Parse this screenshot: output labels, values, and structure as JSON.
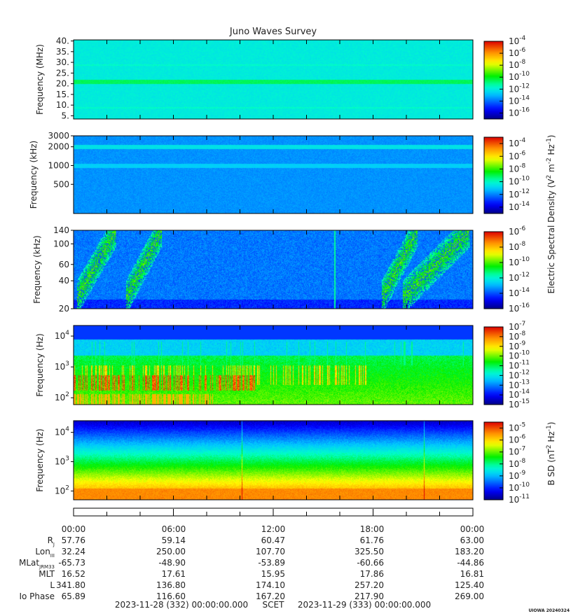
{
  "chart_data": {
    "type": "heatmap",
    "title": "Juno Waves Survey",
    "panels": [
      {
        "ylabel": "Frequency (MHz)",
        "yscale": "linear",
        "ylim": [
          3.5,
          40.5
        ],
        "yticks": [
          {
            "v": 5,
            "t": "5."
          },
          {
            "v": 10,
            "t": "10."
          },
          {
            "v": 15,
            "t": "15."
          },
          {
            "v": 20,
            "t": "20."
          },
          {
            "v": 25,
            "t": "25."
          },
          {
            "v": 30,
            "t": "30."
          },
          {
            "v": 35,
            "t": "35."
          },
          {
            "v": 40,
            "t": "40."
          }
        ],
        "background_level": -12,
        "bands": [
          {
            "f": 21,
            "level": -10.6
          }
        ],
        "colorbar": {
          "min": -17,
          "max": -4,
          "ticks": [
            -4,
            -6,
            -8,
            -10,
            -12,
            -14,
            -16
          ]
        }
      },
      {
        "ylabel": "Frequency (kHz)",
        "yscale": "log",
        "ylim": [
          170,
          3000
        ],
        "yticks": [
          {
            "v": 500,
            "t": "500"
          },
          {
            "v": 1000,
            "t": "1000"
          },
          {
            "v": 2000,
            "t": "2000"
          },
          {
            "v": 3000,
            "t": "3000"
          }
        ],
        "background_level": -11.8,
        "bands": [
          {
            "f": 2000,
            "level": -10.6
          },
          {
            "f": 1000,
            "level": -11.0
          }
        ],
        "colorbar": {
          "min": -15,
          "max": -3,
          "ticks": [
            -4,
            -6,
            -8,
            -10,
            -12,
            -14
          ]
        }
      },
      {
        "ylabel": "Frequency (kHz)",
        "yscale": "log",
        "ylim": [
          20,
          140
        ],
        "yticks": [
          {
            "v": 20,
            "t": "20"
          },
          {
            "v": 40,
            "t": "40"
          },
          {
            "v": 60,
            "t": "60"
          },
          {
            "v": 100,
            "t": "100"
          },
          {
            "v": 140,
            "t": "140"
          }
        ],
        "background_level": -13.6,
        "emissions": "auroral_kilometric_arcs",
        "colorbar": {
          "min": -16,
          "max": -6,
          "ticks": [
            -6,
            -8,
            -10,
            -12,
            -14,
            -16
          ]
        }
      },
      {
        "ylabel": "Frequency (Hz)",
        "yscale": "log",
        "ylim": [
          60,
          22000
        ],
        "yticks": [
          {
            "v": 100,
            "t": "10",
            "e": "2"
          },
          {
            "v": 1000,
            "t": "10",
            "e": "3"
          },
          {
            "v": 10000,
            "t": "10",
            "e": "4"
          }
        ],
        "background_level": -12.5,
        "emissions": "low_frequency_hiss",
        "colorbar": {
          "min": -15,
          "max": -7,
          "ticks": [
            -7,
            -8,
            -9,
            -10,
            -11,
            -12,
            -13,
            -14,
            -15
          ]
        }
      },
      {
        "ylabel": "Frequency (Hz)",
        "yscale": "log",
        "ylim": [
          50,
          25000
        ],
        "yticks": [
          {
            "v": 100,
            "t": "10",
            "e": "2"
          },
          {
            "v": 1000,
            "t": "10",
            "e": "3"
          },
          {
            "v": 10000,
            "t": "10",
            "e": "4"
          }
        ],
        "background_level": -9,
        "emissions": "magnetic_gradient",
        "colorbar": {
          "min": -11,
          "max": -4.5,
          "ticks": [
            -5,
            -6,
            -7,
            -8,
            -9,
            -10,
            -11
          ]
        }
      }
    ],
    "colorbar_labels": [
      {
        "text": "Electric Spectral Density (V",
        "sup1": "2",
        "mid": " m",
        "sup2": "-2",
        "mid2": " Hz",
        "sup3": "-1",
        "end": ")"
      },
      {
        "text": "B SD (nT",
        "sup1": "2",
        "mid": " Hz",
        "sup2": "-1",
        "end": ")"
      }
    ],
    "x_time_labels": [
      "00:00",
      "06:00",
      "12:00",
      "18:00",
      "00:00"
    ],
    "ephemeris": [
      {
        "label": "R",
        "sub": "J",
        "values": [
          "57.76",
          "59.14",
          "60.47",
          "61.76",
          "63.00"
        ]
      },
      {
        "label": "Lon",
        "sub": "III",
        "values": [
          "32.24",
          "250.00",
          "107.70",
          "325.50",
          "183.20"
        ]
      },
      {
        "label": "MLat",
        "sub": "JRM33",
        "values": [
          "-65.73",
          "-48.90",
          "-53.89",
          "-60.66",
          "-44.86"
        ]
      },
      {
        "label": "MLT",
        "sub": "",
        "values": [
          "16.52",
          "17.61",
          "15.95",
          "17.86",
          "16.81"
        ]
      },
      {
        "label": "L",
        "sub": "",
        "values": [
          "341.80",
          "136.80",
          "174.10",
          "257.20",
          "125.40"
        ]
      },
      {
        "label": "Io Phase",
        "sub": "",
        "values": [
          "65.89",
          "116.60",
          "167.20",
          "217.90",
          "269.00"
        ]
      }
    ],
    "time_range": {
      "start": "2023-11-28 (332) 00:00:00.000",
      "frame": "SCET",
      "end": "2023-11-29 (333) 00:00:00.000"
    },
    "stamp": "UIOWA 20240324"
  }
}
